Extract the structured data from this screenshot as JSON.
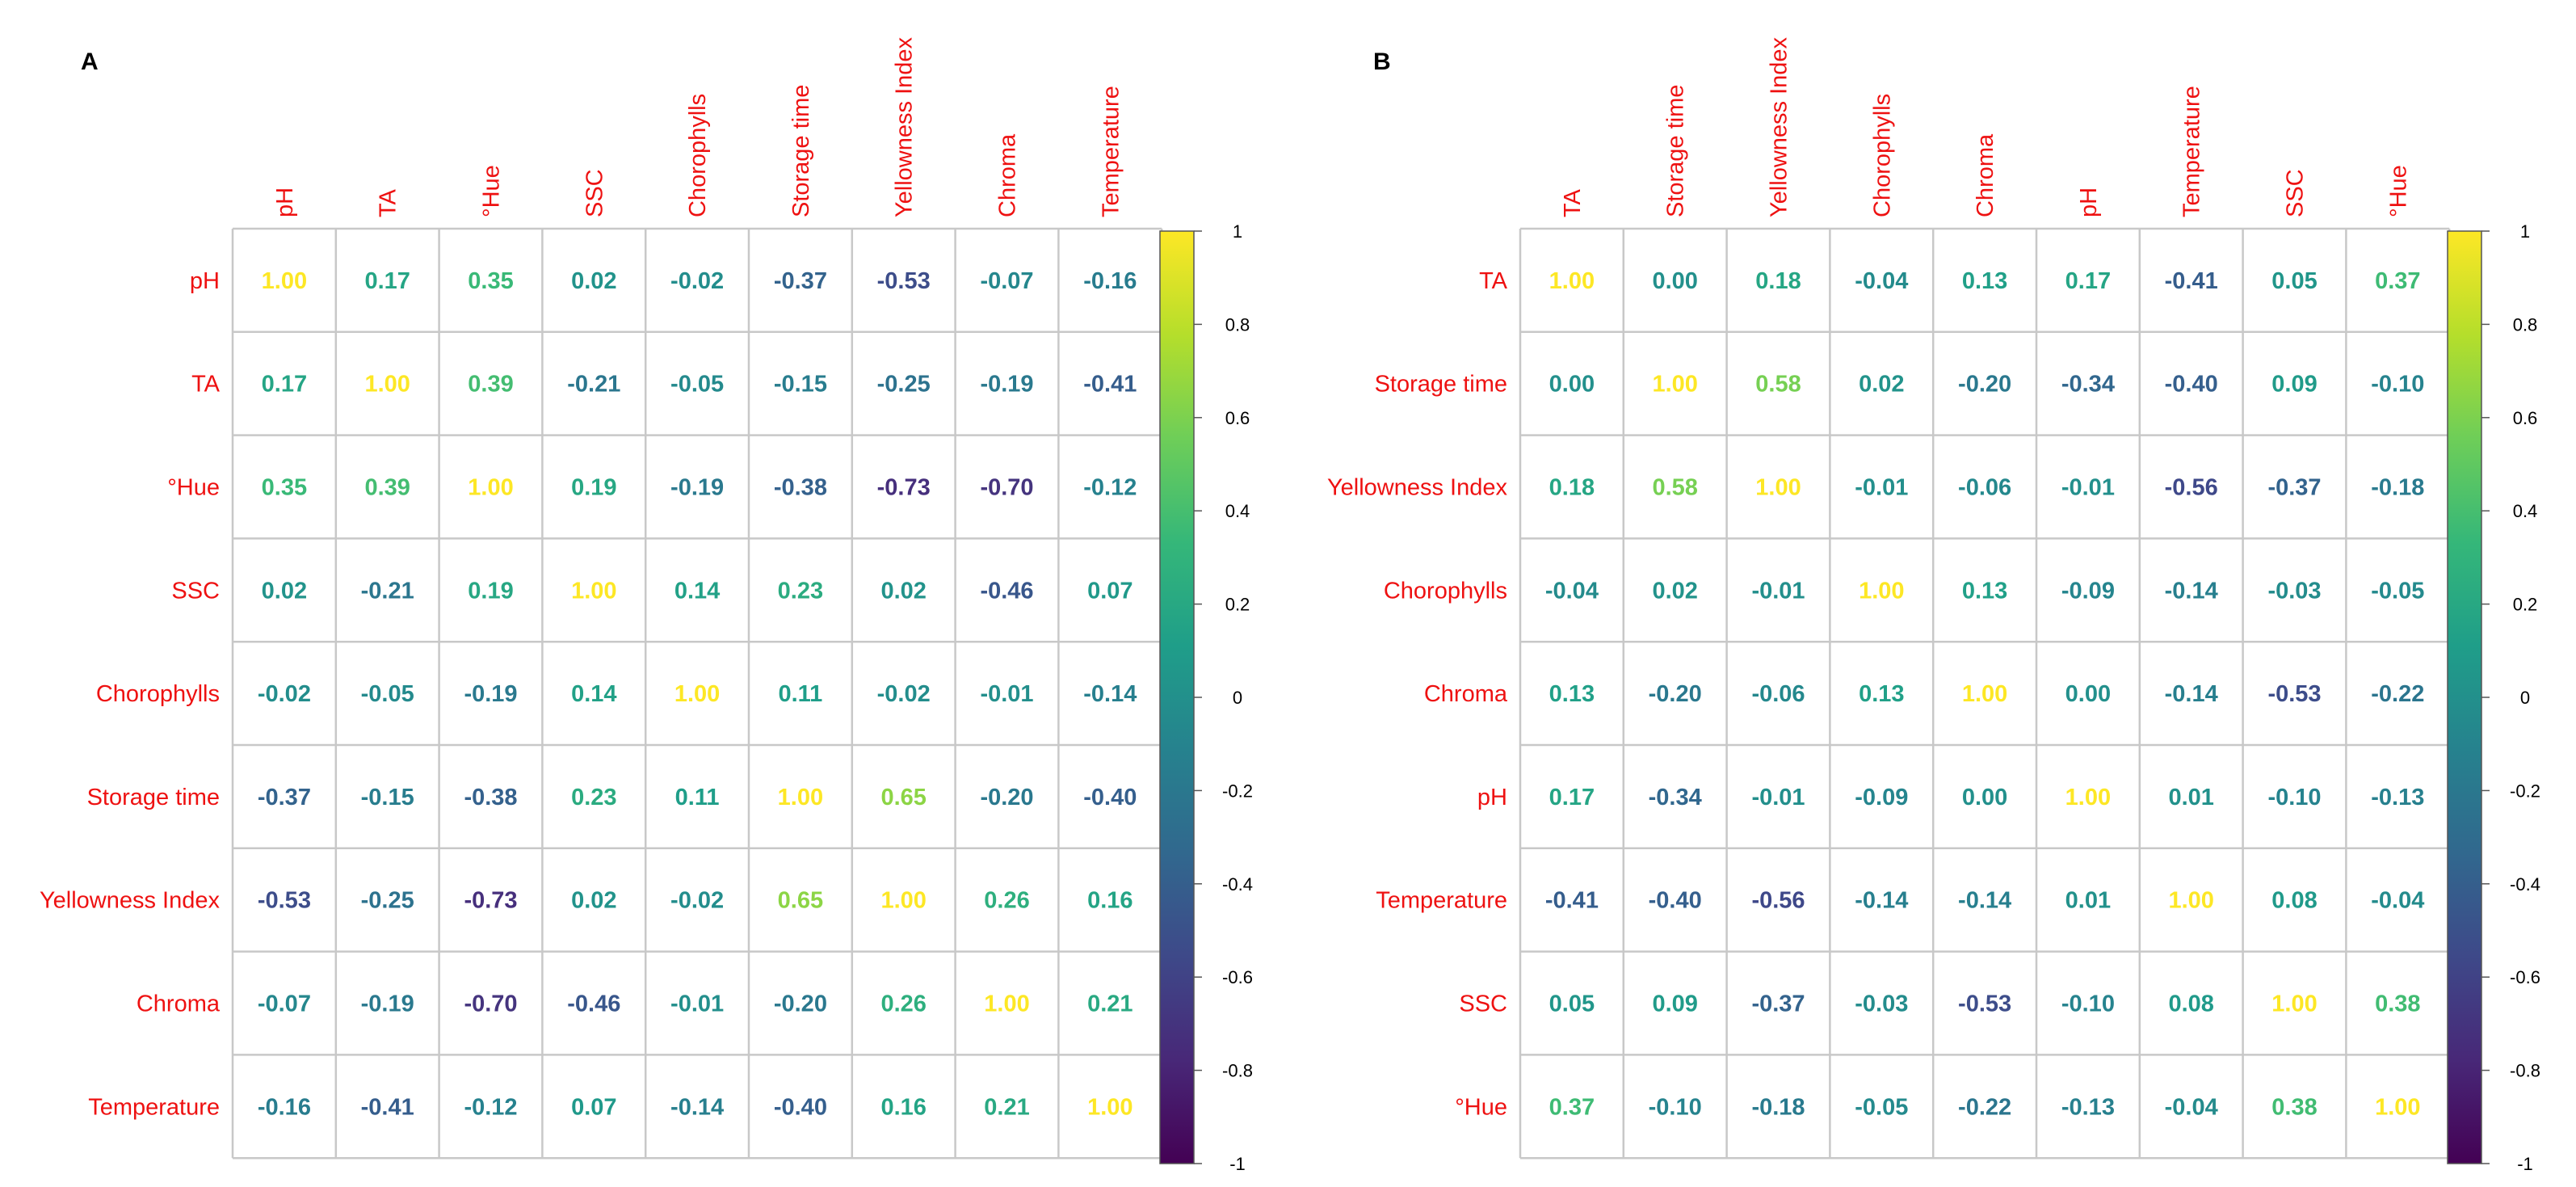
{
  "chart_data": [
    {
      "type": "heatmap",
      "panel_label": "A",
      "variables": [
        "pH",
        "TA",
        "°Hue",
        "SSC",
        "Chorophylls",
        "Storage time",
        "Yellowness Index",
        "Chroma",
        "Temperature"
      ],
      "matrix": [
        [
          "1.00",
          "0.17",
          "0.35",
          "0.02",
          "-0.02",
          "-0.37",
          "-0.53",
          "-0.07",
          "-0.16"
        ],
        [
          "0.17",
          "1.00",
          "0.39",
          "-0.21",
          "-0.05",
          "-0.15",
          "-0.25",
          "-0.19",
          "-0.41"
        ],
        [
          "0.35",
          "0.39",
          "1.00",
          "0.19",
          "-0.19",
          "-0.38",
          "-0.73",
          "-0.70",
          "-0.12"
        ],
        [
          "0.02",
          "-0.21",
          "0.19",
          "1.00",
          "0.14",
          "0.23",
          "0.02",
          "-0.46",
          "0.07"
        ],
        [
          "-0.02",
          "-0.05",
          "-0.19",
          "0.14",
          "1.00",
          "0.11",
          "-0.02",
          "-0.01",
          "-0.14"
        ],
        [
          "-0.37",
          "-0.15",
          "-0.38",
          "0.23",
          "0.11",
          "1.00",
          "0.65",
          "-0.20",
          "-0.40"
        ],
        [
          "-0.53",
          "-0.25",
          "-0.73",
          "0.02",
          "-0.02",
          "0.65",
          "1.00",
          "0.26",
          "0.16"
        ],
        [
          "-0.07",
          "-0.19",
          "-0.70",
          "-0.46",
          "-0.01",
          "-0.20",
          "0.26",
          "1.00",
          "0.21"
        ],
        [
          "-0.16",
          "-0.41",
          "-0.12",
          "0.07",
          "-0.14",
          "-0.40",
          "0.16",
          "0.21",
          "1.00"
        ]
      ],
      "colorbar": {
        "range": [
          -1,
          1
        ],
        "ticks": [
          "1",
          "0.8",
          "0.6",
          "0.4",
          "0.2",
          "0",
          "-0.2",
          "-0.4",
          "-0.6",
          "-0.8",
          "-1"
        ]
      },
      "colorscale": [
        "#440154",
        "#482878",
        "#3e4989",
        "#31688e",
        "#26828e",
        "#1f9e89",
        "#35b779",
        "#6ece58",
        "#b5de2b",
        "#fde725"
      ],
      "label_color": "#ee1111",
      "grid": true
    },
    {
      "type": "heatmap",
      "panel_label": "B",
      "variables": [
        "TA",
        "Storage time",
        "Yellowness Index",
        "Chorophylls",
        "Chroma",
        "pH",
        "Temperature",
        "SSC",
        "°Hue"
      ],
      "matrix": [
        [
          "1.00",
          "0.00",
          "0.18",
          "-0.04",
          "0.13",
          "0.17",
          "-0.41",
          "0.05",
          "0.37"
        ],
        [
          "0.00",
          "1.00",
          "0.58",
          "0.02",
          "-0.20",
          "-0.34",
          "-0.40",
          "0.09",
          "-0.10"
        ],
        [
          "0.18",
          "0.58",
          "1.00",
          "-0.01",
          "-0.06",
          "-0.01",
          "-0.56",
          "-0.37",
          "-0.18"
        ],
        [
          "-0.04",
          "0.02",
          "-0.01",
          "1.00",
          "0.13",
          "-0.09",
          "-0.14",
          "-0.03",
          "-0.05"
        ],
        [
          "0.13",
          "-0.20",
          "-0.06",
          "0.13",
          "1.00",
          "0.00",
          "-0.14",
          "-0.53",
          "-0.22"
        ],
        [
          "0.17",
          "-0.34",
          "-0.01",
          "-0.09",
          "0.00",
          "1.00",
          "0.01",
          "-0.10",
          "-0.13"
        ],
        [
          "-0.41",
          "-0.40",
          "-0.56",
          "-0.14",
          "-0.14",
          "0.01",
          "1.00",
          "0.08",
          "-0.04"
        ],
        [
          "0.05",
          "0.09",
          "-0.37",
          "-0.03",
          "-0.53",
          "-0.10",
          "0.08",
          "1.00",
          "0.38"
        ],
        [
          "0.37",
          "-0.10",
          "-0.18",
          "-0.05",
          "-0.22",
          "-0.13",
          "-0.04",
          "0.38",
          "1.00"
        ]
      ],
      "colorbar": {
        "range": [
          -1,
          1
        ],
        "ticks": [
          "1",
          "0.8",
          "0.6",
          "0.4",
          "0.2",
          "0",
          "-0.2",
          "-0.4",
          "-0.6",
          "-0.8",
          "-1"
        ]
      },
      "colorscale": [
        "#440154",
        "#482878",
        "#3e4989",
        "#31688e",
        "#26828e",
        "#1f9e89",
        "#35b779",
        "#6ece58",
        "#b5de2b",
        "#fde725"
      ],
      "label_color": "#ee1111",
      "grid": true
    }
  ]
}
